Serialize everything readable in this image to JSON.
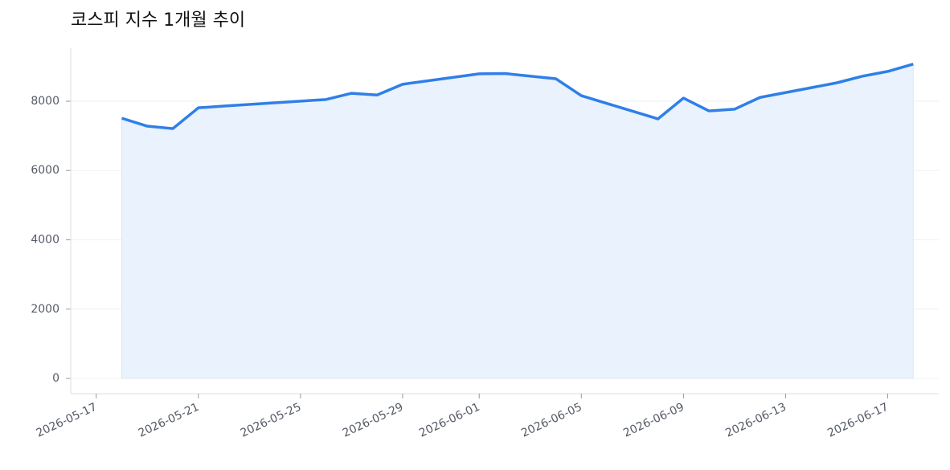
{
  "chart_data": {
    "type": "area-line",
    "title": "코스피 지수 1개월 추이",
    "x": [
      "2026-05-18",
      "2026-05-19",
      "2026-05-20",
      "2026-05-21",
      "2026-05-22",
      "2026-05-26",
      "2026-05-27",
      "2026-05-28",
      "2026-05-29",
      "2026-06-01",
      "2026-06-02",
      "2026-06-04",
      "2026-06-05",
      "2026-06-08",
      "2026-06-09",
      "2026-06-10",
      "2026-06-11",
      "2026-06-12",
      "2026-06-15",
      "2026-06-16",
      "2026-06-17",
      "2026-06-18"
    ],
    "values": [
      7510,
      7280,
      7210,
      7810,
      7860,
      8050,
      8230,
      8180,
      8490,
      8790,
      8800,
      8650,
      8160,
      7490,
      8090,
      7720,
      7770,
      8110,
      8530,
      8720,
      8860,
      9070
    ],
    "color": "#2f7fe8",
    "fill": "#eaf2fe",
    "xlim": [
      "2026-05-16",
      "2026-06-19"
    ],
    "xticks": [
      "2026-05-17",
      "2026-05-21",
      "2026-05-25",
      "2026-05-29",
      "2026-06-01",
      "2026-06-05",
      "2026-06-09",
      "2026-06-13",
      "2026-06-17"
    ],
    "ylim": [
      -440,
      9530
    ],
    "yticks": [
      0,
      2000,
      4000,
      6000,
      8000
    ],
    "grid": true
  }
}
